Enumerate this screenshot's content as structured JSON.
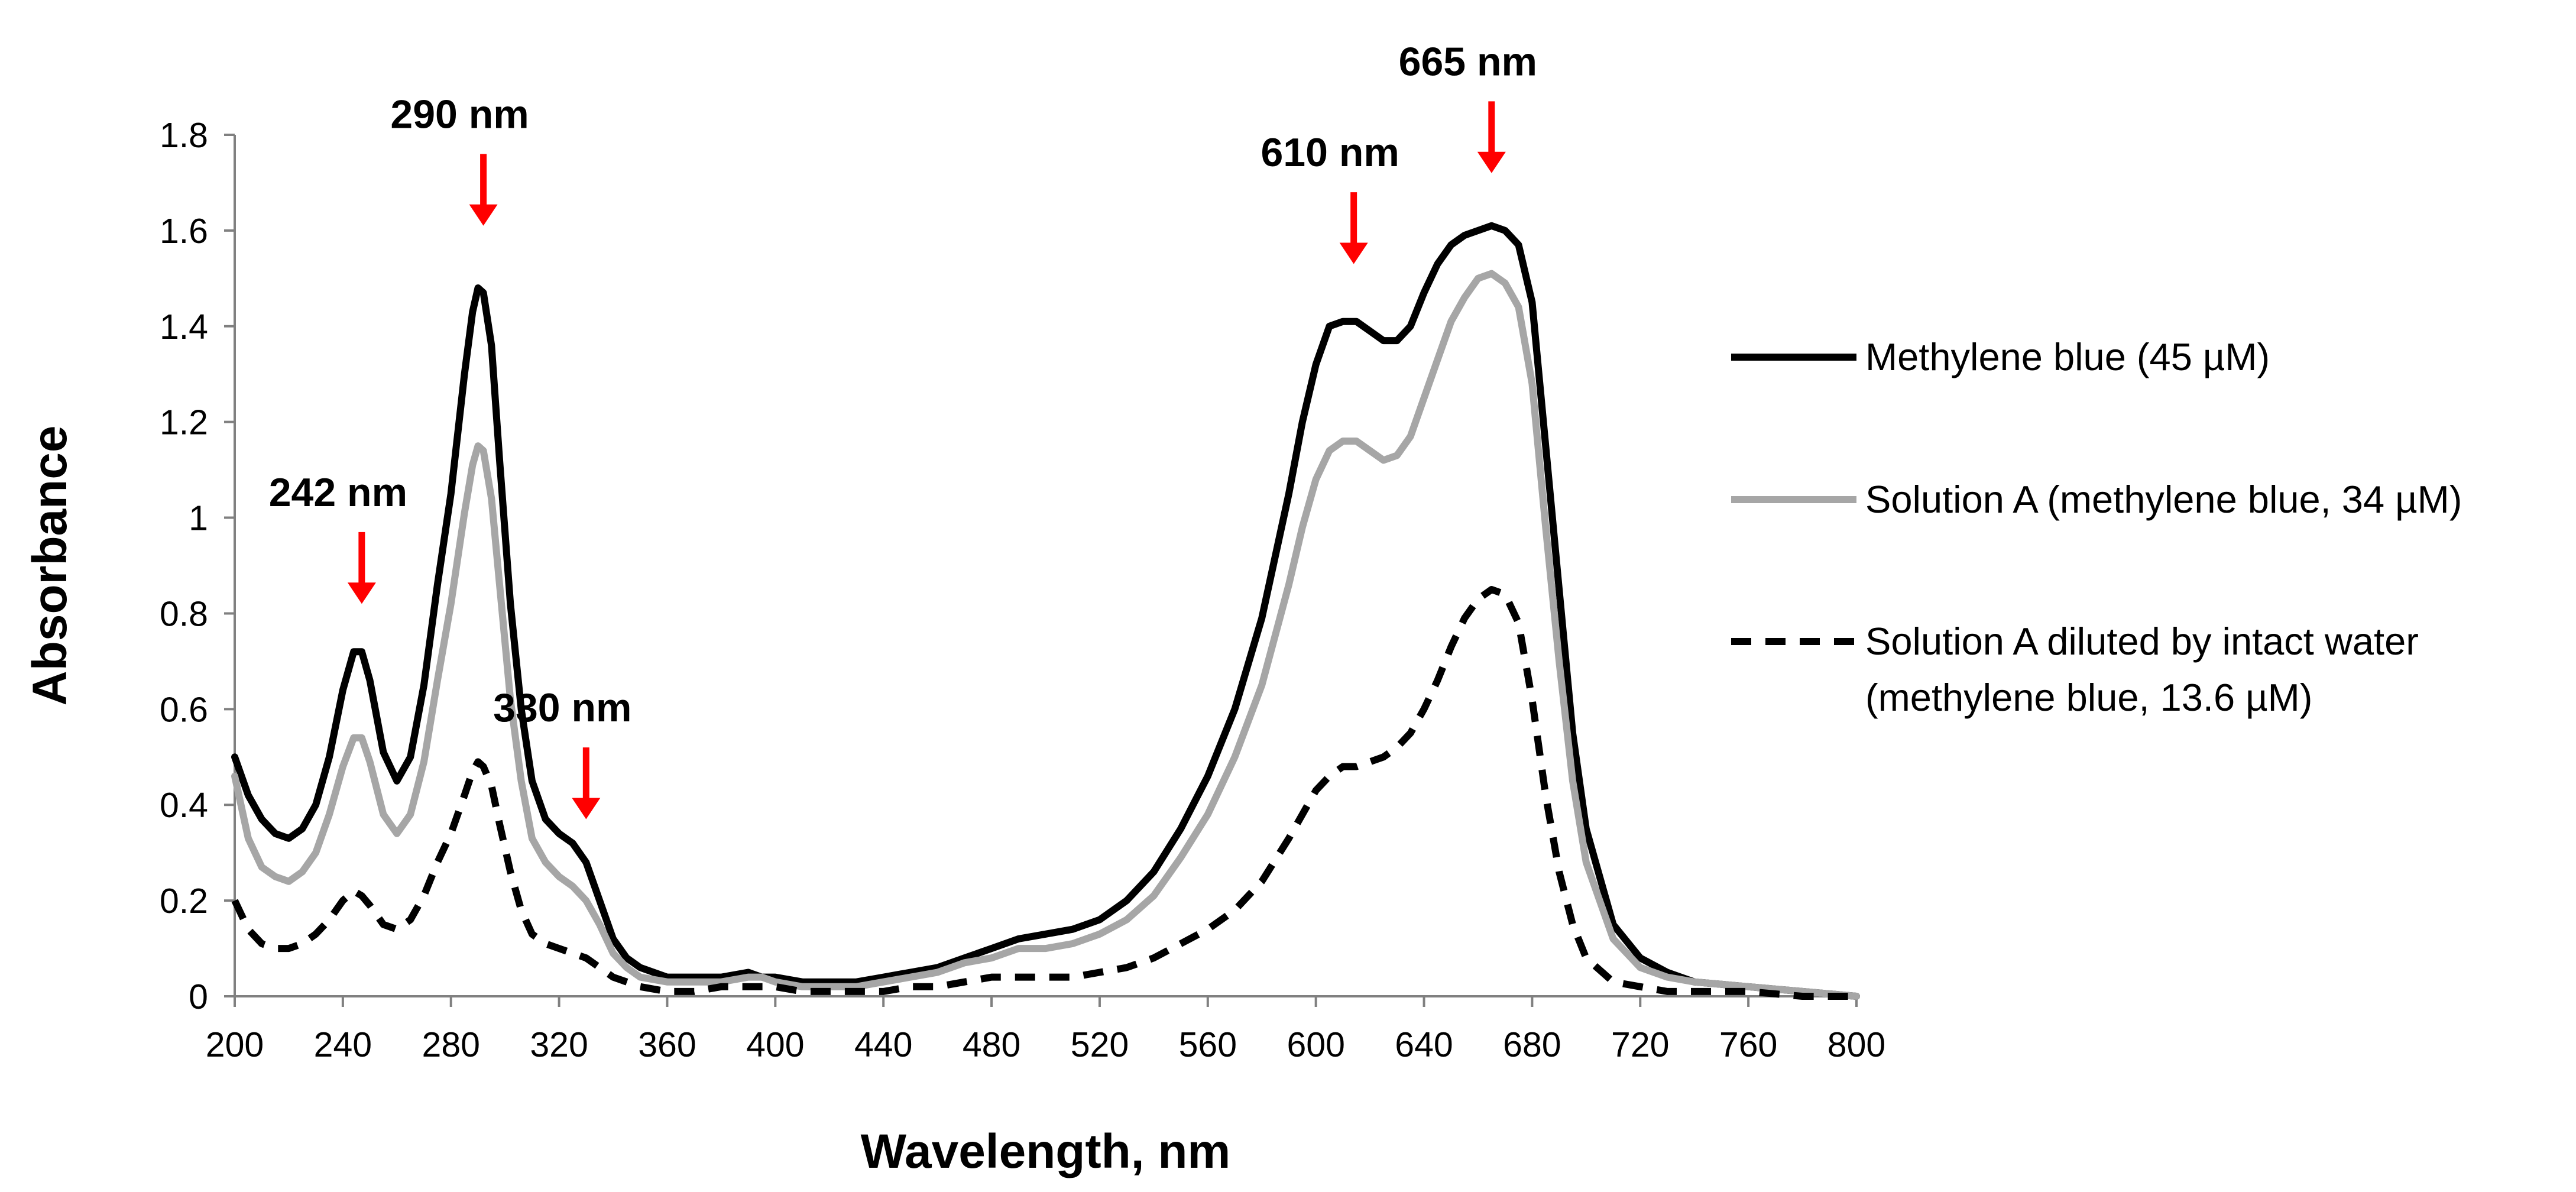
{
  "chart_data": {
    "type": "line",
    "title": "",
    "xlabel": "Wavelength, nm",
    "ylabel": "Absorbance",
    "xlim": [
      200,
      800
    ],
    "ylim": [
      0,
      1.8
    ],
    "xticks": [
      200,
      240,
      280,
      320,
      360,
      400,
      440,
      480,
      520,
      560,
      600,
      640,
      680,
      720,
      760,
      800
    ],
    "xtick_labels": [
      "200",
      "240",
      "280",
      "320",
      "360",
      "400",
      "440",
      "480",
      "520",
      "560",
      "600",
      "640",
      "680",
      "720",
      "760",
      "800"
    ],
    "yticks": [
      0,
      0.2,
      0.4,
      0.6,
      0.8,
      1,
      1.2,
      1.4,
      1.6,
      1.8
    ],
    "ytick_labels": [
      "0",
      "0.2",
      "0.4",
      "0.6",
      "0.8",
      "1",
      "1.2",
      "1.4",
      "1.6",
      "1.8"
    ],
    "grid": false,
    "legend_position": "right",
    "series": [
      {
        "name": "Methylene blue (45 µM)",
        "color": "#000000",
        "style": "solid",
        "x": [
          200,
          205,
          210,
          215,
          220,
          225,
          230,
          235,
          240,
          244,
          247,
          250,
          255,
          260,
          265,
          270,
          275,
          280,
          285,
          288,
          290,
          292,
          295,
          298,
          302,
          306,
          310,
          315,
          320,
          325,
          330,
          335,
          340,
          345,
          350,
          360,
          370,
          380,
          390,
          395,
          400,
          410,
          420,
          430,
          440,
          450,
          460,
          470,
          480,
          490,
          500,
          510,
          520,
          530,
          540,
          550,
          560,
          570,
          580,
          590,
          595,
          600,
          605,
          610,
          615,
          620,
          625,
          630,
          635,
          640,
          645,
          650,
          655,
          660,
          665,
          670,
          675,
          680,
          685,
          690,
          695,
          700,
          710,
          720,
          730,
          740,
          760,
          780,
          800
        ],
        "values": [
          0.5,
          0.42,
          0.37,
          0.34,
          0.33,
          0.35,
          0.4,
          0.5,
          0.64,
          0.72,
          0.72,
          0.66,
          0.51,
          0.45,
          0.5,
          0.65,
          0.86,
          1.05,
          1.3,
          1.43,
          1.48,
          1.47,
          1.36,
          1.12,
          0.82,
          0.6,
          0.45,
          0.37,
          0.34,
          0.32,
          0.28,
          0.2,
          0.12,
          0.08,
          0.06,
          0.04,
          0.04,
          0.04,
          0.05,
          0.04,
          0.04,
          0.03,
          0.03,
          0.03,
          0.04,
          0.05,
          0.06,
          0.08,
          0.1,
          0.12,
          0.13,
          0.14,
          0.16,
          0.2,
          0.26,
          0.35,
          0.46,
          0.6,
          0.79,
          1.05,
          1.2,
          1.32,
          1.4,
          1.41,
          1.41,
          1.39,
          1.37,
          1.37,
          1.4,
          1.47,
          1.53,
          1.57,
          1.59,
          1.6,
          1.61,
          1.6,
          1.57,
          1.45,
          1.15,
          0.85,
          0.55,
          0.35,
          0.15,
          0.08,
          0.05,
          0.03,
          0.02,
          0.01,
          0.0
        ]
      },
      {
        "name": "Solution A (methylene blue, 34 µM)",
        "color": "#a6a6a6",
        "style": "solid",
        "x": [
          200,
          205,
          210,
          215,
          220,
          225,
          230,
          235,
          240,
          244,
          247,
          250,
          255,
          260,
          265,
          270,
          275,
          280,
          285,
          288,
          290,
          292,
          295,
          298,
          302,
          306,
          310,
          315,
          320,
          325,
          330,
          335,
          340,
          345,
          350,
          360,
          370,
          380,
          390,
          395,
          400,
          410,
          420,
          430,
          440,
          450,
          460,
          470,
          480,
          490,
          500,
          510,
          520,
          530,
          540,
          550,
          560,
          570,
          580,
          590,
          595,
          600,
          605,
          610,
          615,
          620,
          625,
          630,
          635,
          640,
          645,
          650,
          655,
          660,
          665,
          670,
          675,
          680,
          685,
          690,
          695,
          700,
          710,
          720,
          730,
          740,
          760,
          780,
          800
        ],
        "values": [
          0.46,
          0.33,
          0.27,
          0.25,
          0.24,
          0.26,
          0.3,
          0.38,
          0.48,
          0.54,
          0.54,
          0.49,
          0.38,
          0.34,
          0.38,
          0.49,
          0.66,
          0.82,
          1.01,
          1.11,
          1.15,
          1.14,
          1.04,
          0.86,
          0.62,
          0.45,
          0.33,
          0.28,
          0.25,
          0.23,
          0.2,
          0.15,
          0.09,
          0.06,
          0.04,
          0.03,
          0.03,
          0.03,
          0.04,
          0.04,
          0.03,
          0.02,
          0.02,
          0.02,
          0.03,
          0.04,
          0.05,
          0.07,
          0.08,
          0.1,
          0.1,
          0.11,
          0.13,
          0.16,
          0.21,
          0.29,
          0.38,
          0.5,
          0.65,
          0.86,
          0.98,
          1.08,
          1.14,
          1.16,
          1.16,
          1.14,
          1.12,
          1.13,
          1.17,
          1.25,
          1.33,
          1.41,
          1.46,
          1.5,
          1.51,
          1.49,
          1.44,
          1.28,
          0.98,
          0.7,
          0.45,
          0.28,
          0.12,
          0.06,
          0.04,
          0.03,
          0.02,
          0.01,
          0.0
        ]
      },
      {
        "name": "Solution A diluted by intact water (methylene blue, 13.6  µM)",
        "color": "#000000",
        "style": "dashed",
        "x": [
          200,
          205,
          210,
          215,
          220,
          225,
          230,
          235,
          240,
          244,
          247,
          250,
          255,
          260,
          265,
          270,
          275,
          280,
          285,
          288,
          290,
          292,
          295,
          298,
          302,
          306,
          310,
          315,
          320,
          325,
          330,
          335,
          340,
          345,
          350,
          360,
          370,
          380,
          390,
          395,
          400,
          410,
          420,
          430,
          440,
          450,
          460,
          470,
          480,
          490,
          500,
          510,
          520,
          530,
          540,
          550,
          560,
          570,
          580,
          590,
          595,
          600,
          605,
          610,
          615,
          620,
          625,
          630,
          635,
          640,
          645,
          650,
          655,
          660,
          665,
          670,
          675,
          680,
          685,
          690,
          695,
          700,
          710,
          720,
          730,
          740,
          760,
          780,
          800
        ],
        "values": [
          0.2,
          0.14,
          0.11,
          0.1,
          0.1,
          0.11,
          0.13,
          0.16,
          0.2,
          0.22,
          0.21,
          0.19,
          0.15,
          0.14,
          0.16,
          0.21,
          0.28,
          0.34,
          0.42,
          0.47,
          0.49,
          0.48,
          0.44,
          0.36,
          0.26,
          0.18,
          0.13,
          0.11,
          0.1,
          0.09,
          0.08,
          0.06,
          0.04,
          0.03,
          0.02,
          0.01,
          0.01,
          0.02,
          0.02,
          0.02,
          0.02,
          0.01,
          0.01,
          0.01,
          0.01,
          0.02,
          0.02,
          0.03,
          0.04,
          0.04,
          0.04,
          0.04,
          0.05,
          0.06,
          0.08,
          0.11,
          0.14,
          0.18,
          0.24,
          0.33,
          0.38,
          0.43,
          0.46,
          0.48,
          0.48,
          0.49,
          0.5,
          0.52,
          0.55,
          0.6,
          0.66,
          0.73,
          0.79,
          0.83,
          0.85,
          0.84,
          0.78,
          0.62,
          0.42,
          0.26,
          0.15,
          0.08,
          0.03,
          0.02,
          0.01,
          0.01,
          0.01,
          0.0,
          0.0
        ]
      }
    ],
    "annotations": [
      {
        "label": "242 nm",
        "x": 247,
        "arrow_y_top": 0.97,
        "arrow_y_bottom": 0.82
      },
      {
        "label": "290 nm",
        "x": 292,
        "arrow_y_top": 1.76,
        "arrow_y_bottom": 1.61
      },
      {
        "label": "330 nm",
        "x": 330,
        "arrow_y_top": 0.52,
        "arrow_y_bottom": 0.37
      },
      {
        "label": "610 nm",
        "x": 614,
        "arrow_y_top": 1.68,
        "arrow_y_bottom": 1.53
      },
      {
        "label": "665 nm",
        "x": 665,
        "arrow_y_top": 1.87,
        "arrow_y_bottom": 1.72
      }
    ],
    "annotation_color": "#ff0000",
    "legend": [
      {
        "lines": [
          "Methylene blue (45 µM)"
        ]
      },
      {
        "lines": [
          "Solution A (methylene blue, 34 µM)"
        ]
      },
      {
        "lines": [
          "Solution A diluted by intact water",
          "(methylene blue, 13.6  µM)"
        ]
      }
    ]
  }
}
